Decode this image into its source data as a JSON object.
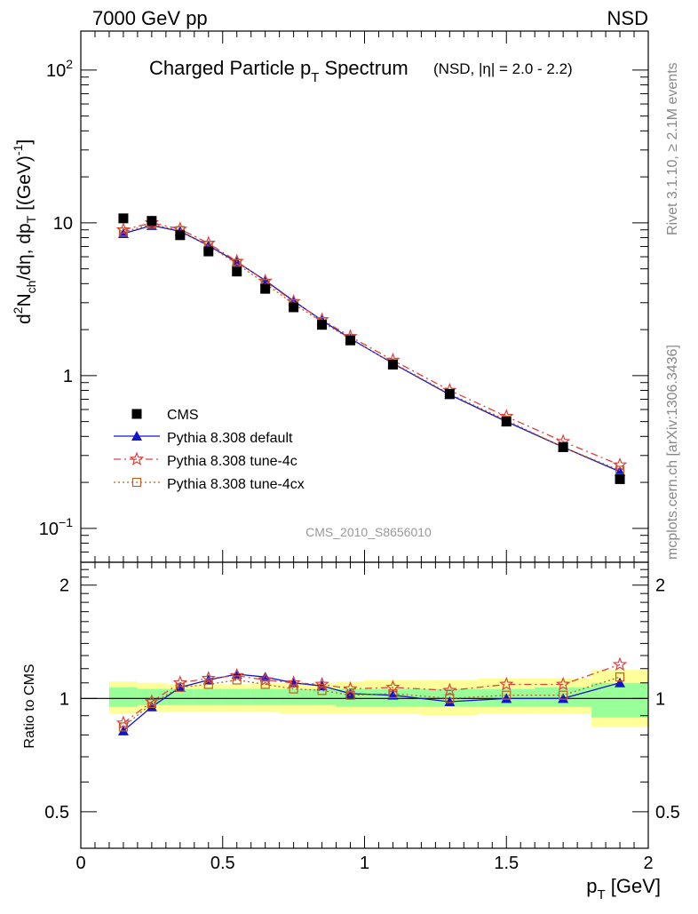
{
  "header": {
    "left": "7000 GeV pp",
    "right": "NSD"
  },
  "side": {
    "rivet": "Rivet 3.1.10, ≥ 2.1M events",
    "mcplots": "mcplots.cern.ch [arXiv:1306.3436]"
  },
  "title": {
    "main": "Charged Particle p",
    "main_sub": "T",
    "main_tail": " Spectrum",
    "small": "(NSD, |η| = 2.0 - 2.2)"
  },
  "watermark": "CMS_2010_S8656010",
  "ylabel": {
    "d": "d",
    "sup2": "2",
    "n": "N",
    "ch": "ch",
    "mid": "/dη, dp",
    "t": "T",
    "unit": " [(GeV)",
    "minus1": "-1",
    "close": "]"
  },
  "ratio_ylabel": "Ratio to CMS",
  "xlabel": {
    "p": "p",
    "t": "T",
    "unit": " [GeV]"
  },
  "main_ticks": {
    "y": [
      {
        "v": 100,
        "base": "10",
        "exp": "2"
      },
      {
        "v": 10,
        "base": "10",
        "exp": ""
      },
      {
        "v": 1,
        "base": "1",
        "exp": ""
      },
      {
        "v": 0.1,
        "base": "10",
        "exp": "−1"
      }
    ]
  },
  "ratio_ticks": {
    "y": [
      {
        "v": 2,
        "label": "2"
      },
      {
        "v": 1,
        "label": "1"
      },
      {
        "v": 0.5,
        "label": "0.5"
      }
    ]
  },
  "x_ticks": [
    {
      "v": 0,
      "label": "0"
    },
    {
      "v": 0.5,
      "label": "0.5"
    },
    {
      "v": 1,
      "label": "1"
    },
    {
      "v": 1.5,
      "label": "1.5"
    },
    {
      "v": 2,
      "label": "2"
    }
  ],
  "legend": [
    {
      "key": "cms",
      "label": "CMS"
    },
    {
      "key": "def",
      "label": "Pythia 8.308 default"
    },
    {
      "key": "t4c",
      "label": "Pythia 8.308 tune-4c"
    },
    {
      "key": "t4cx",
      "label": "Pythia 8.308 tune-4cx"
    }
  ],
  "colors": {
    "cms": "#000000",
    "def": "#1515c8",
    "t4c": "#e04040",
    "t4cx": "#c06020",
    "band_inner": "#99ff99",
    "band_outer": "#ffff99"
  },
  "chart_data": {
    "type": "scatter",
    "xlim": [
      0,
      2
    ],
    "main_ylim": [
      0.06,
      180
    ],
    "main_yscale": "log",
    "ratio_ylim": [
      0.4,
      2.3
    ],
    "ratio_yscale": "log",
    "x": [
      0.15,
      0.25,
      0.35,
      0.45,
      0.55,
      0.65,
      0.75,
      0.85,
      0.95,
      1.1,
      1.3,
      1.5,
      1.7,
      1.9
    ],
    "bin_edges": [
      0.1,
      0.2,
      0.3,
      0.4,
      0.5,
      0.6,
      0.7,
      0.8,
      0.9,
      1.0,
      1.2,
      1.4,
      1.6,
      1.8,
      2.0
    ],
    "cms": [
      10.7,
      10.3,
      8.3,
      6.5,
      4.8,
      3.7,
      2.8,
      2.15,
      1.7,
      1.18,
      0.76,
      0.5,
      0.34,
      0.21
    ],
    "series": [
      {
        "key": "def",
        "values": [
          8.5,
          9.6,
          8.8,
          7.1,
          5.55,
          4.2,
          3.08,
          2.3,
          1.75,
          1.2,
          0.75,
          0.5,
          0.34,
          0.235
        ]
      },
      {
        "key": "t4c",
        "values": [
          9.0,
          10.0,
          9.1,
          7.35,
          5.6,
          4.15,
          3.05,
          2.32,
          1.8,
          1.26,
          0.8,
          0.54,
          0.37,
          0.26
        ]
      },
      {
        "key": "t4cx",
        "values": [
          8.7,
          9.8,
          8.9,
          7.1,
          5.4,
          4.0,
          2.95,
          2.25,
          1.73,
          1.21,
          0.76,
          0.51,
          0.34,
          0.24
        ]
      }
    ],
    "ratios": [
      {
        "key": "def",
        "values": [
          0.82,
          0.95,
          1.07,
          1.12,
          1.16,
          1.14,
          1.1,
          1.08,
          1.03,
          1.02,
          0.98,
          1.0,
          1.0,
          1.1
        ]
      },
      {
        "key": "t4c",
        "values": [
          0.86,
          0.98,
          1.1,
          1.13,
          1.15,
          1.12,
          1.1,
          1.09,
          1.06,
          1.07,
          1.05,
          1.09,
          1.09,
          1.23
        ]
      },
      {
        "key": "t4cx",
        "values": [
          0.84,
          0.97,
          1.07,
          1.09,
          1.12,
          1.09,
          1.06,
          1.05,
          1.02,
          1.03,
          1.0,
          1.02,
          1.02,
          1.14
        ]
      }
    ],
    "band_inner": [
      [
        0.95,
        1.07
      ],
      [
        0.96,
        1.06
      ],
      [
        0.96,
        1.06
      ],
      [
        0.96,
        1.06
      ],
      [
        0.96,
        1.06
      ],
      [
        0.96,
        1.06
      ],
      [
        0.96,
        1.06
      ],
      [
        0.96,
        1.06
      ],
      [
        0.95,
        1.06
      ],
      [
        0.95,
        1.06
      ],
      [
        0.95,
        1.06
      ],
      [
        0.95,
        1.06
      ],
      [
        0.95,
        1.07
      ],
      [
        0.89,
        1.1
      ]
    ],
    "band_outer": [
      [
        0.91,
        1.11
      ],
      [
        0.92,
        1.1
      ],
      [
        0.92,
        1.09
      ],
      [
        0.92,
        1.09
      ],
      [
        0.92,
        1.09
      ],
      [
        0.92,
        1.1
      ],
      [
        0.91,
        1.1
      ],
      [
        0.91,
        1.1
      ],
      [
        0.91,
        1.11
      ],
      [
        0.91,
        1.12
      ],
      [
        0.9,
        1.12
      ],
      [
        0.91,
        1.13
      ],
      [
        0.91,
        1.13
      ],
      [
        0.84,
        1.19
      ]
    ]
  }
}
